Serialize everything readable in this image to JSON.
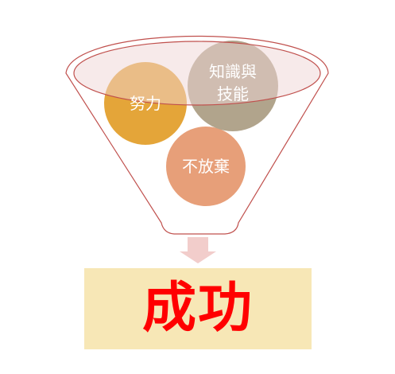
{
  "funnel": {
    "inputs": [
      {
        "lines": [
          "努力"
        ],
        "color": "#e3a02e"
      },
      {
        "lines": [
          "知識與",
          "技能"
        ],
        "color": "#ad9f86"
      },
      {
        "lines": [
          "不放棄"
        ],
        "color": "#e69a72"
      }
    ],
    "outline_color": "#c0504d",
    "rim_fill": "#efd6d6",
    "arrow_color": "#f2cdcb"
  },
  "result": {
    "label": "成功",
    "text_color": "#ff0000",
    "box_color": "#f7e7b6"
  }
}
